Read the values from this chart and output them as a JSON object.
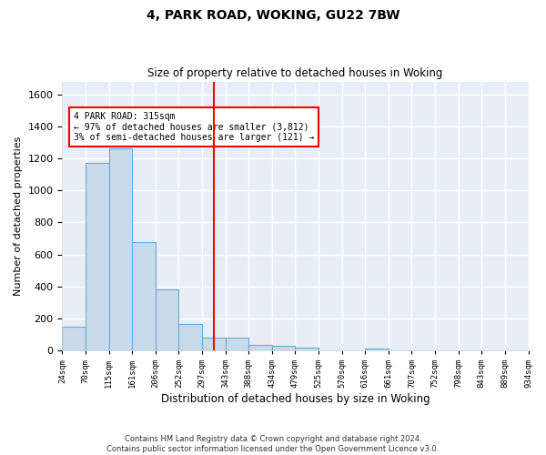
{
  "title1": "4, PARK ROAD, WOKING, GU22 7BW",
  "title2": "Size of property relative to detached houses in Woking",
  "xlabel": "Distribution of detached houses by size in Woking",
  "ylabel": "Number of detached properties",
  "bar_color": "#c9daea",
  "bar_edge_color": "#6aaad4",
  "background_color": "#e8eef8",
  "grid_color": "#ffffff",
  "vline_color": "red",
  "annotation_text": "4 PARK ROAD: 315sqm\n← 97% of detached houses are smaller (3,812)\n3% of semi-detached houses are larger (121) →",
  "bar_heights": [
    150,
    1170,
    1260,
    680,
    380,
    165,
    80,
    80,
    35,
    30,
    20,
    0,
    0,
    15,
    0,
    0,
    0,
    0,
    0,
    0
  ],
  "n_bins": 20,
  "vline_bin": 6,
  "ylim": [
    0,
    1680
  ],
  "yticks": [
    0,
    200,
    400,
    600,
    800,
    1000,
    1200,
    1400,
    1600
  ],
  "tick_labels": [
    "24sqm",
    "70sqm",
    "115sqm",
    "161sqm",
    "206sqm",
    "252sqm",
    "297sqm",
    "343sqm",
    "388sqm",
    "434sqm",
    "479sqm",
    "525sqm",
    "570sqm",
    "616sqm",
    "661sqm",
    "707sqm",
    "752sqm",
    "798sqm",
    "843sqm",
    "889sqm",
    "934sqm"
  ],
  "footer": "Contains HM Land Registry data © Crown copyright and database right 2024.\nContains public sector information licensed under the Open Government Licence v3.0.",
  "figsize": [
    6.0,
    5.0
  ],
  "dpi": 100
}
